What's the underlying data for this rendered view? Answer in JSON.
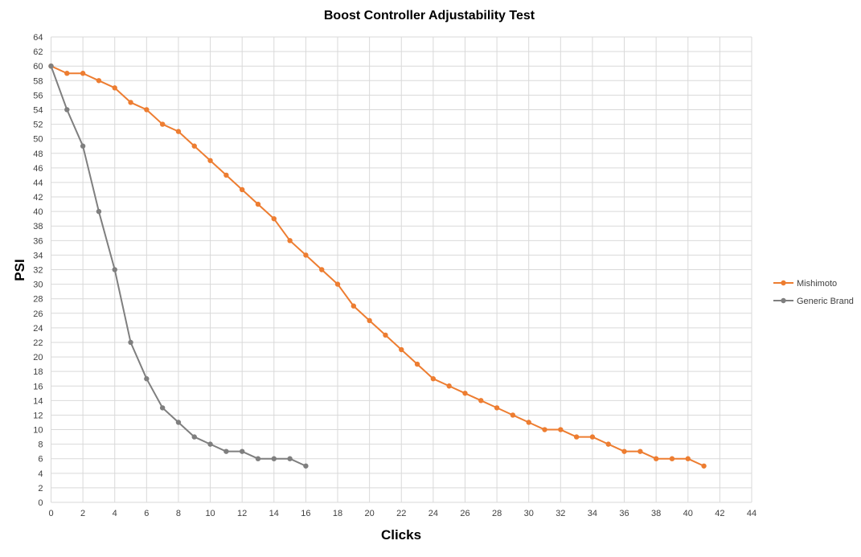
{
  "chart_data": {
    "type": "line",
    "title": "Boost Controller Adjustability Test",
    "xlabel": "Clicks",
    "ylabel": "PSI",
    "xlim": [
      0,
      44
    ],
    "ylim": [
      0,
      64
    ],
    "xtick_step": 2,
    "ytick_step": 2,
    "grid": true,
    "legend_position": "right",
    "series": [
      {
        "name": "Mishimoto",
        "color": "#ED7D31",
        "x": [
          0,
          1,
          2,
          3,
          4,
          5,
          6,
          7,
          8,
          9,
          10,
          11,
          12,
          13,
          14,
          15,
          16,
          17,
          18,
          19,
          20,
          21,
          22,
          23,
          24,
          25,
          26,
          27,
          28,
          29,
          30,
          31,
          32,
          33,
          34,
          35,
          36,
          37,
          38,
          39,
          40,
          41
        ],
        "y": [
          60,
          59,
          59,
          58,
          57,
          55,
          54,
          52,
          51,
          49,
          47,
          45,
          43,
          41,
          39,
          36,
          34,
          32,
          30,
          27,
          25,
          23,
          21,
          19,
          17,
          16,
          15,
          14,
          13,
          12,
          11,
          10,
          10,
          9,
          9,
          8,
          7,
          7,
          6,
          6,
          6,
          5
        ]
      },
      {
        "name": "Generic Brand",
        "color": "#7F7F7F",
        "x": [
          0,
          1,
          2,
          3,
          4,
          5,
          6,
          7,
          8,
          9,
          10,
          11,
          12,
          13,
          14,
          15,
          16
        ],
        "y": [
          60,
          54,
          49,
          40,
          32,
          22,
          17,
          13,
          11,
          9,
          8,
          7,
          7,
          6,
          6,
          6,
          5
        ]
      }
    ]
  }
}
